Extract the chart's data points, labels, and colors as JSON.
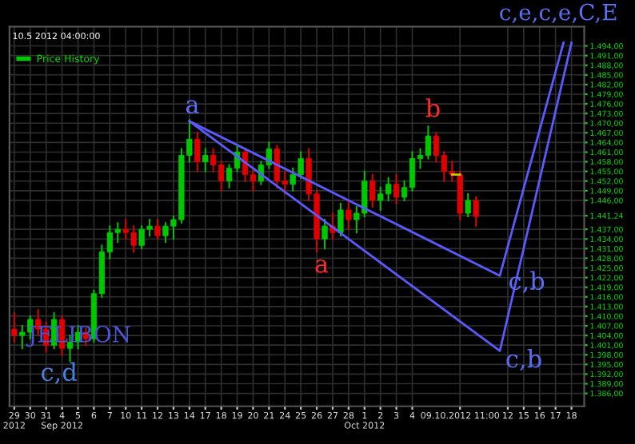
{
  "chart_data": {
    "type": "candlestick",
    "subtitle": "10.5 2012 04:00:00",
    "categories": [
      "29\n2012",
      null,
      "30",
      null,
      "31",
      null,
      "4\nSep 2012",
      null,
      "5",
      null,
      "6",
      null,
      "7",
      null,
      "10",
      null,
      "11",
      null,
      "12",
      null,
      "13",
      null,
      "14",
      null,
      "17",
      null,
      "18",
      null,
      "19",
      null,
      "20",
      null,
      "21",
      null,
      "24",
      null,
      "25",
      null,
      "26",
      null,
      "27",
      null,
      "28",
      null,
      "1\nOct 2012",
      null,
      "2",
      null,
      "3",
      null,
      "4",
      null,
      null,
      null,
      null,
      null,
      "09.10.2012 11:00",
      null,
      null,
      null,
      null,
      null,
      "12",
      null,
      "15",
      null,
      "16",
      null,
      "17",
      null,
      "18",
      null
    ],
    "series": [
      {
        "name": "Price History",
        "colors": [
          "#e00000",
          "#00c800",
          "#00c800",
          "#e00000",
          "#e00000",
          "#00c800",
          "#e00000",
          "#00c800",
          "#00c800",
          "#e00000",
          "#00c800",
          "#00c800",
          "#00c800",
          "#00c800",
          "#e00000",
          "#e00000",
          "#00c800",
          "#00c800",
          "#e00000",
          "#00c800",
          "#00c800",
          "#00c800",
          "#00c800",
          "#e00000",
          "#00c800",
          "#e00000",
          "#e00000",
          "#00c800",
          "#00c800",
          "#e00000",
          "#e00000",
          "#00c800",
          "#00c800",
          "#e00000",
          "#e00000",
          "#00c800",
          "#00c800",
          "#e00000",
          "#e00000",
          "#00c800",
          "#e00000",
          "#00c800",
          "#e00000",
          "#00c800",
          "#00c800",
          "#e00000",
          "#00c800",
          "#00c800",
          "#e00000",
          "#00c800",
          "#00c800",
          "#00c800",
          "#00c800",
          "#e00000",
          "#e00000",
          "#e00000",
          "#e00000",
          "#00c800",
          "#e00000",
          null,
          null,
          null,
          null,
          null,
          null,
          null,
          null,
          null,
          null,
          null,
          null,
          null
        ],
        "ohlc": [
          [
            1406,
            1411,
            1402,
            1404
          ],
          [
            1404,
            1407,
            1400,
            1405
          ],
          [
            1405,
            1410,
            1403,
            1409
          ],
          [
            1409,
            1412,
            1404,
            1406
          ],
          [
            1406,
            1408,
            1399,
            1401
          ],
          [
            1401,
            1411,
            1400,
            1409
          ],
          [
            1409,
            1410,
            1398,
            1400
          ],
          [
            1400,
            1404,
            1396,
            1402
          ],
          [
            1402,
            1407,
            1400,
            1405
          ],
          [
            1405,
            1406,
            1401,
            1403
          ],
          [
            1403,
            1418,
            1402,
            1417
          ],
          [
            1417,
            1432,
            1416,
            1430
          ],
          [
            1430,
            1438,
            1428,
            1436
          ],
          [
            1436,
            1439,
            1433,
            1437
          ],
          [
            1437,
            1440,
            1434,
            1436
          ],
          [
            1436,
            1438,
            1430,
            1432
          ],
          [
            1432,
            1438,
            1431,
            1437
          ],
          [
            1437,
            1440,
            1435,
            1438
          ],
          [
            1438,
            1440,
            1434,
            1435
          ],
          [
            1435,
            1439,
            1433,
            1438
          ],
          [
            1438,
            1441,
            1434,
            1440
          ],
          [
            1440,
            1462,
            1439,
            1460
          ],
          [
            1460,
            1471,
            1458,
            1465
          ],
          [
            1465,
            1467,
            1455,
            1458
          ],
          [
            1458,
            1462,
            1455,
            1460
          ],
          [
            1460,
            1462,
            1455,
            1457
          ],
          [
            1457,
            1458,
            1449,
            1452
          ],
          [
            1452,
            1457,
            1450,
            1456
          ],
          [
            1456,
            1463,
            1455,
            1461
          ],
          [
            1461,
            1462,
            1452,
            1454
          ],
          [
            1454,
            1456,
            1449,
            1452
          ],
          [
            1452,
            1458,
            1451,
            1457
          ],
          [
            1457,
            1464,
            1456,
            1462
          ],
          [
            1462,
            1463,
            1450,
            1452
          ],
          [
            1452,
            1455,
            1448,
            1451
          ],
          [
            1451,
            1456,
            1449,
            1454
          ],
          [
            1454,
            1461,
            1453,
            1459
          ],
          [
            1459,
            1462,
            1446,
            1448
          ],
          [
            1448,
            1449,
            1430,
            1434
          ],
          [
            1434,
            1440,
            1431,
            1438
          ],
          [
            1438,
            1442,
            1434,
            1436
          ],
          [
            1436,
            1445,
            1435,
            1443
          ],
          [
            1443,
            1446,
            1437,
            1440
          ],
          [
            1440,
            1444,
            1436,
            1442
          ],
          [
            1442,
            1455,
            1441,
            1452
          ],
          [
            1452,
            1454,
            1444,
            1446
          ],
          [
            1446,
            1450,
            1443,
            1448
          ],
          [
            1448,
            1453,
            1446,
            1451
          ],
          [
            1451,
            1454,
            1445,
            1447
          ],
          [
            1447,
            1452,
            1446,
            1450
          ],
          [
            1450,
            1461,
            1449,
            1459
          ],
          [
            1459,
            1462,
            1456,
            1460
          ],
          [
            1460,
            1469,
            1459,
            1466
          ],
          [
            1466,
            1467,
            1458,
            1460
          ],
          [
            1460,
            1461,
            1452,
            1455
          ],
          [
            1455,
            1458,
            1452,
            1454
          ],
          [
            1454,
            1455,
            1440,
            1442
          ],
          [
            1442,
            1448,
            1441,
            1446
          ],
          [
            1446,
            1447,
            1438,
            1441
          ],
          null,
          null,
          null,
          null,
          null,
          null,
          null,
          null,
          null,
          null,
          null,
          null,
          null
        ]
      },
      {
        "type": "line",
        "color": "#5a5aff",
        "values": [
          null,
          null,
          null,
          null,
          null,
          null,
          null,
          null,
          null,
          null,
          null,
          null,
          null,
          null,
          null,
          null,
          null,
          null,
          null,
          null,
          null,
          null,
          1470.6,
          null,
          null,
          null,
          null,
          null,
          null,
          null,
          null,
          null,
          null,
          null,
          null,
          null,
          null,
          null,
          null,
          null,
          null,
          null,
          null,
          null,
          null,
          null,
          null,
          null,
          null,
          null,
          null,
          null,
          null,
          null,
          null,
          null,
          null,
          null,
          null,
          null,
          null,
          1422.6,
          null,
          null,
          null,
          null,
          null,
          null,
          null,
          1495,
          null,
          null
        ]
      },
      {
        "type": "line",
        "color": "#5a5aff",
        "values": [
          null,
          null,
          null,
          null,
          null,
          null,
          null,
          null,
          null,
          null,
          null,
          null,
          null,
          null,
          null,
          null,
          null,
          null,
          null,
          null,
          null,
          null,
          1470.6,
          null,
          null,
          null,
          null,
          null,
          null,
          null,
          null,
          null,
          null,
          null,
          null,
          null,
          null,
          null,
          null,
          null,
          null,
          null,
          null,
          null,
          null,
          null,
          null,
          null,
          null,
          null,
          null,
          null,
          null,
          null,
          null,
          null,
          null,
          null,
          null,
          null,
          null,
          1399.2,
          null,
          null,
          null,
          null,
          null,
          null,
          null,
          null,
          1495,
          null
        ]
      },
      {
        "type": "line",
        "color": "#c8c800",
        "values": [
          null,
          null,
          null,
          null,
          null,
          null,
          null,
          null,
          null,
          null,
          null,
          null,
          null,
          null,
          null,
          null,
          null,
          null,
          null,
          null,
          null,
          null,
          null,
          null,
          null,
          null,
          null,
          null,
          null,
          null,
          null,
          null,
          null,
          null,
          null,
          null,
          null,
          null,
          null,
          null,
          null,
          null,
          null,
          null,
          null,
          null,
          null,
          null,
          null,
          null,
          null,
          null,
          null,
          null,
          null,
          1454,
          1454,
          null,
          null,
          null,
          null,
          null,
          null,
          null,
          null,
          null,
          null,
          null,
          null,
          null,
          null,
          null
        ]
      }
    ],
    "ylim": [
      1382,
      1500
    ],
    "yticks": [
      {
        "value": 1386,
        "label": "1.386,00"
      },
      {
        "value": 1389,
        "label": "1.389,00"
      },
      {
        "value": 1392,
        "label": "1.392,00"
      },
      {
        "value": 1395,
        "label": "1.395,00"
      },
      {
        "value": 1398,
        "label": "1.398,00"
      },
      {
        "value": 1401,
        "label": "1.401,00"
      },
      {
        "value": 1404,
        "label": "1.404,00"
      },
      {
        "value": 1407,
        "label": "1.407,00"
      },
      {
        "value": 1410,
        "label": "1.410,00"
      },
      {
        "value": 1413,
        "label": "1.413,00"
      },
      {
        "value": 1416,
        "label": "1.416,00"
      },
      {
        "value": 1419,
        "label": "1.419,00"
      },
      {
        "value": 1422,
        "label": "1.422,00"
      },
      {
        "value": 1425,
        "label": "1.425,00"
      },
      {
        "value": 1428,
        "label": "1.428,00"
      },
      {
        "value": 1431,
        "label": "1.431,00"
      },
      {
        "value": 1434,
        "label": "1.434,00"
      },
      {
        "value": 1437,
        "label": "1.437,00"
      },
      {
        "value": 1441.24,
        "label": "1.441,24"
      },
      {
        "value": 1446,
        "label": "1.446,00"
      },
      {
        "value": 1449,
        "label": "1.449,00"
      },
      {
        "value": 1452,
        "label": "1.452,00"
      },
      {
        "value": 1455,
        "label": "1.455,00"
      },
      {
        "value": 1458,
        "label": "1.458,00"
      },
      {
        "value": 1461,
        "label": "1.461,00"
      },
      {
        "value": 1464,
        "label": "1.464,00"
      },
      {
        "value": 1467,
        "label": "1.467,00"
      },
      {
        "value": 1470,
        "label": "1.470,00"
      },
      {
        "value": 1473,
        "label": "1.473,00"
      },
      {
        "value": 1476,
        "label": "1.476,00"
      },
      {
        "value": 1479,
        "label": "1.479,00"
      },
      {
        "value": 1482,
        "label": "1.482,00"
      },
      {
        "value": 1485,
        "label": "1.485,00"
      },
      {
        "value": 1488,
        "label": "1.488,00"
      },
      {
        "value": 1491,
        "label": "1.491,00"
      },
      {
        "value": 1494,
        "label": "1.494,00"
      }
    ],
    "annotations": [
      "a",
      "a",
      "b",
      "c,b",
      "c,b",
      "JELIBON",
      "c,d",
      "c,e,c,e,C,E"
    ],
    "grid": true,
    "legend": "top left"
  }
}
